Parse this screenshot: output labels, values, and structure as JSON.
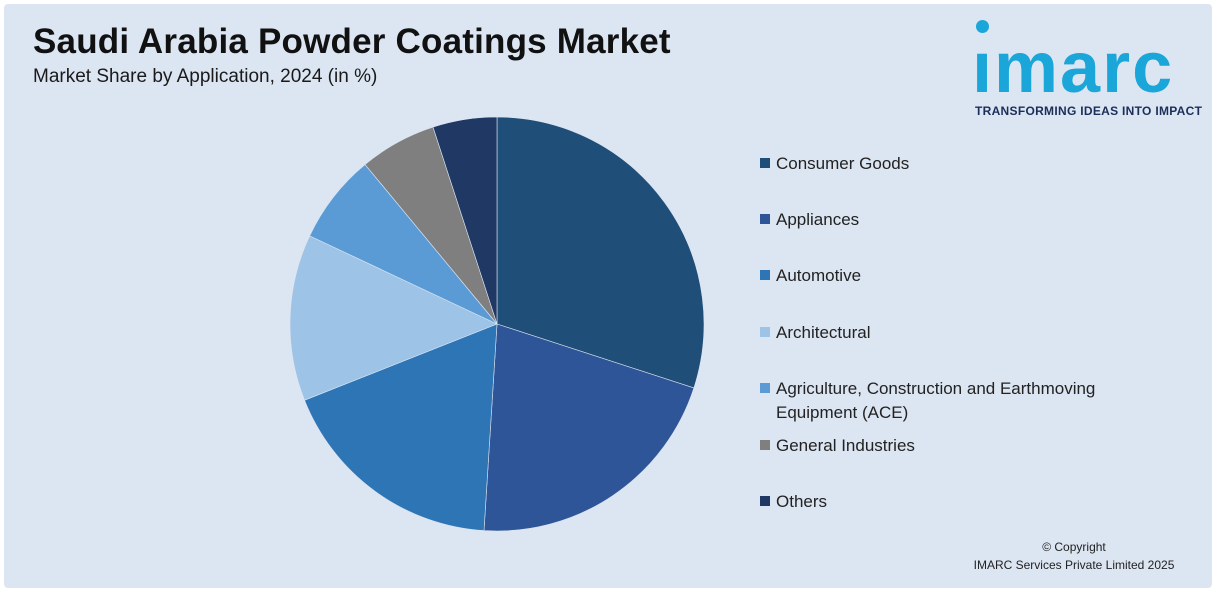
{
  "header": {
    "title": "Saudi Arabia Powder Coatings Market",
    "subtitle": "Market Share by Application, 2024 (in %)"
  },
  "logo": {
    "word": "ımarc",
    "tagline": "TRANSFORMING IDEAS INTO IMPACT",
    "color": "#1aa6d9"
  },
  "footer": {
    "line1": "© Copyright",
    "line2": "IMARC Services Private Limited 2025"
  },
  "chart_data": {
    "type": "pie",
    "title": "Saudi Arabia Powder Coatings Market",
    "subtitle": "Market Share by Application, 2024 (in %)",
    "legend_position": "right",
    "slices": [
      {
        "label": "Consumer Goods",
        "value": 30,
        "color": "#1f4e79"
      },
      {
        "label": "Appliances",
        "value": 21,
        "color": "#2e5597"
      },
      {
        "label": "Automotive",
        "value": 18,
        "color": "#2e75b6"
      },
      {
        "label": "Architectural",
        "value": 13,
        "color": "#9dc3e6"
      },
      {
        "label": "Agriculture, Construction and Earthmoving Equipment (ACE)",
        "value": 7,
        "color": "#5b9bd5"
      },
      {
        "label": "General Industries",
        "value": 6,
        "color": "#7f7f7f"
      },
      {
        "label": "Others",
        "value": 5,
        "color": "#203864"
      }
    ]
  }
}
